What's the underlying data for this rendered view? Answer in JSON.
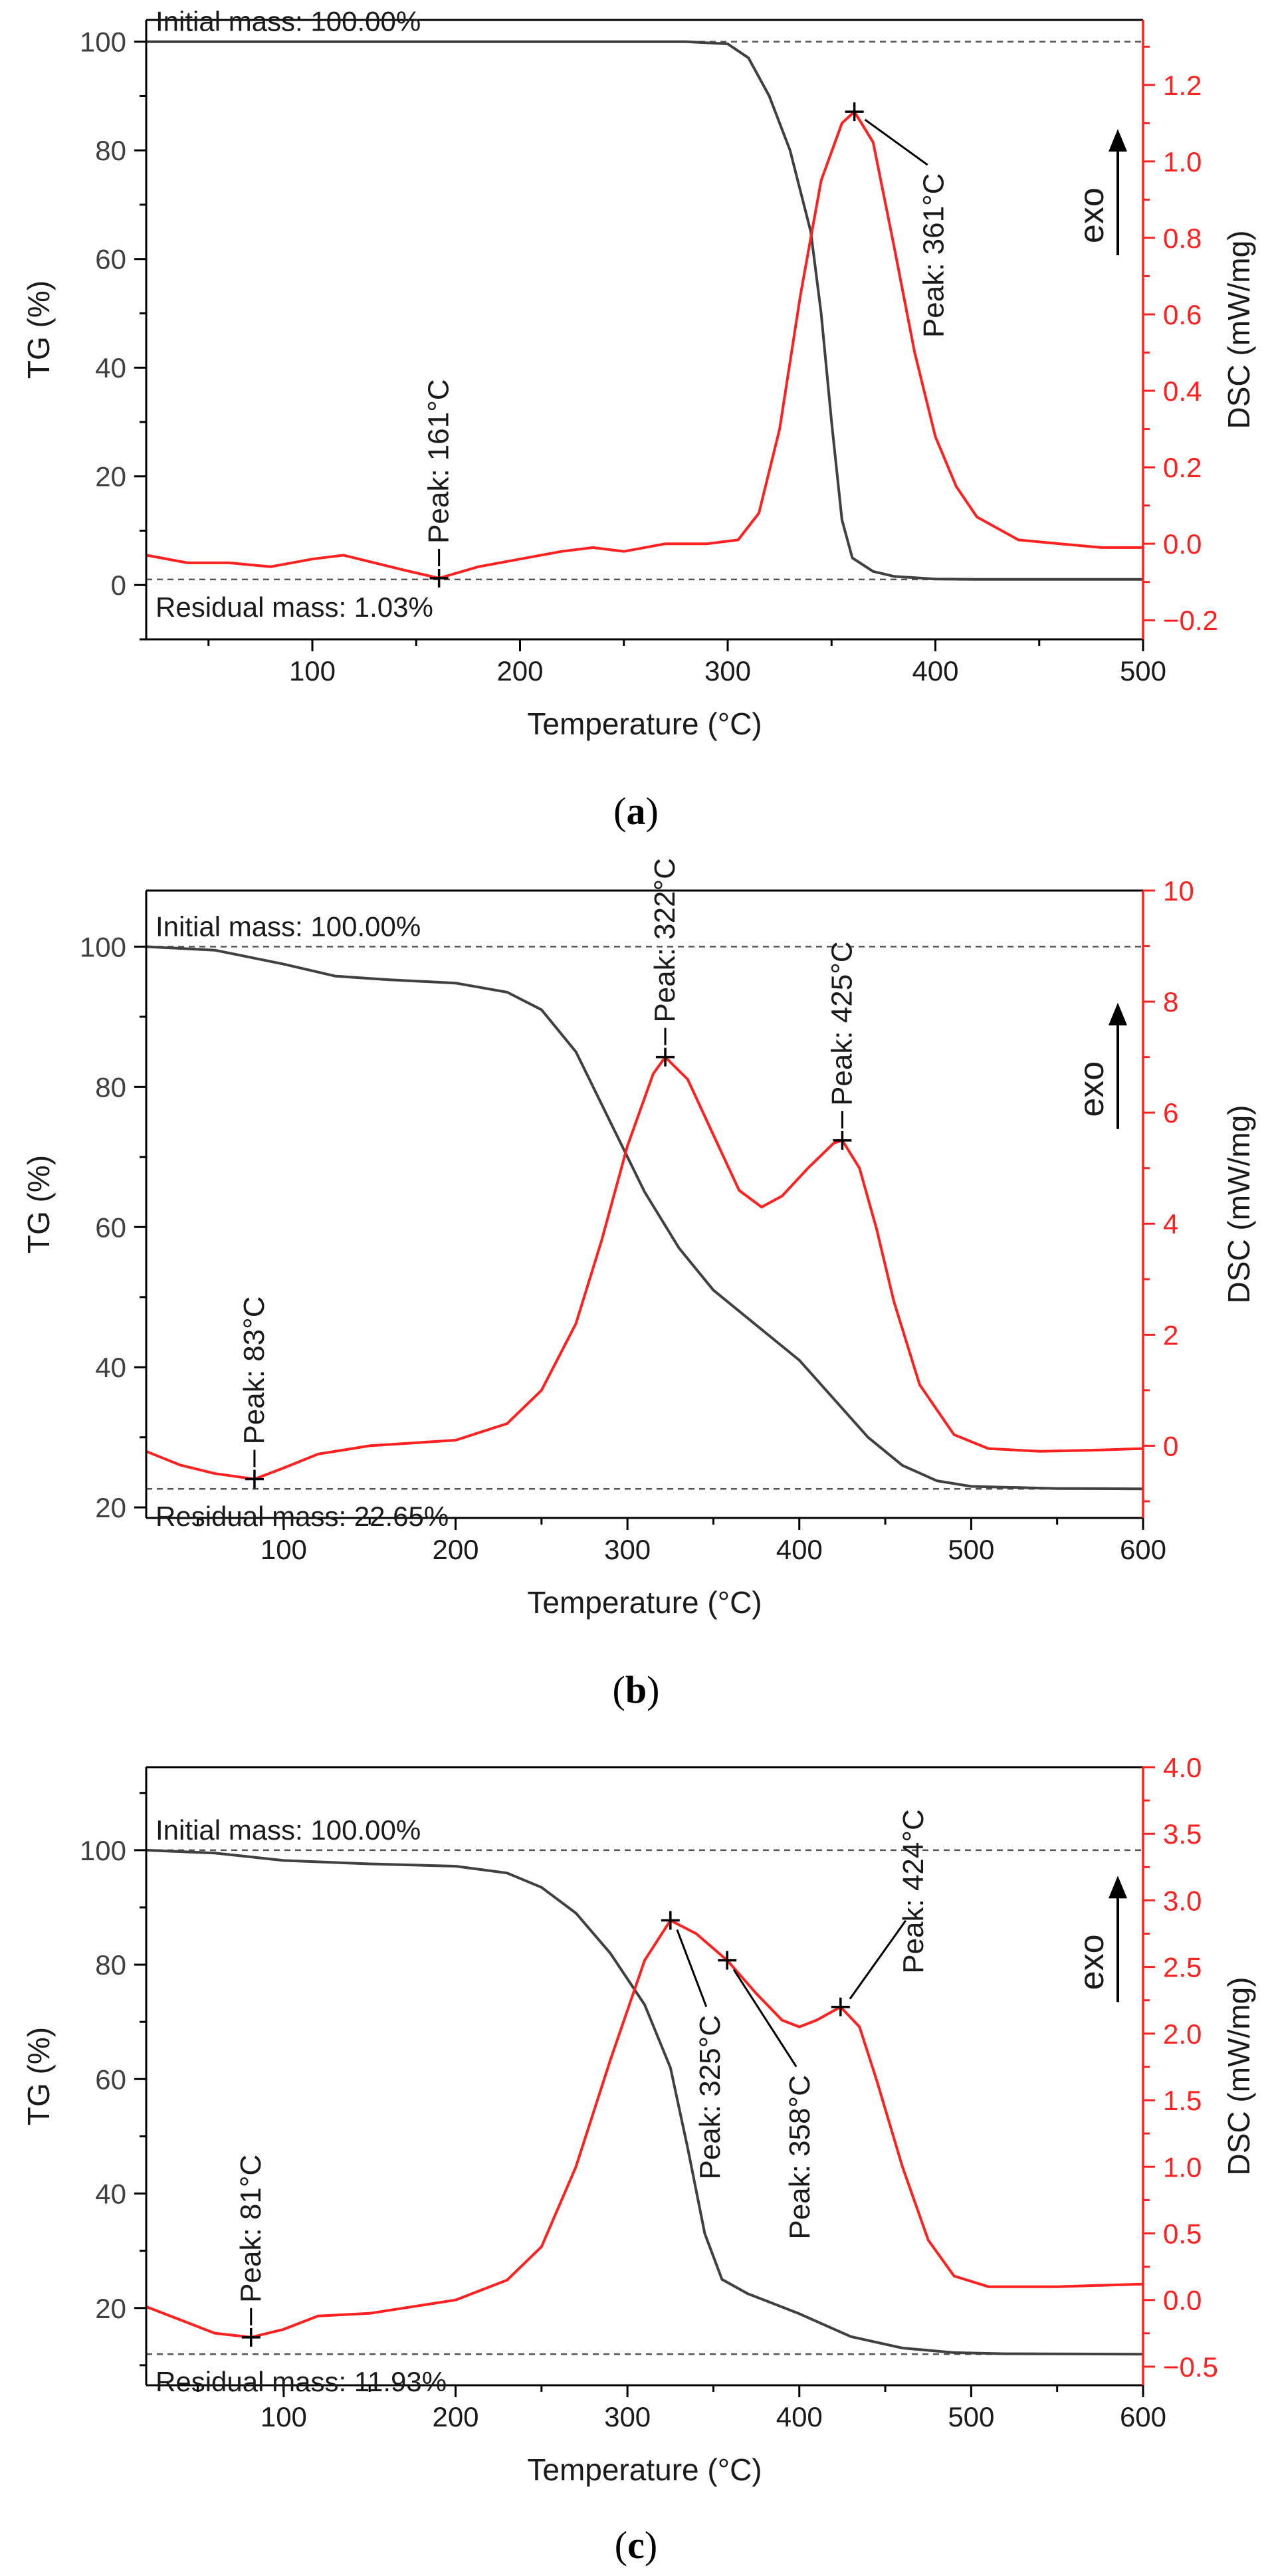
{
  "colors": {
    "tg": "#404040",
    "dsc": "#ff2020",
    "axis": "#000000",
    "dsc_axis": "#ff2020",
    "ref": "#555555"
  },
  "chart_data": [
    {
      "panel": "a",
      "type": "line",
      "caption_letter": "a",
      "xlabel": "Temperature (°C)",
      "ylabel_left": "TG (%)",
      "ylabel_right": "DSC (mW/mg)",
      "xlim": [
        20,
        500
      ],
      "xticks": [
        100,
        200,
        300,
        400,
        500
      ],
      "ylim_left": [
        -10,
        104
      ],
      "yticks_left": [
        0,
        20,
        40,
        60,
        80,
        100
      ],
      "ylim_right": [
        -0.25,
        1.37
      ],
      "yticks_right": [
        "-0.2",
        "0.0",
        "0.2",
        "0.4",
        "0.6",
        "0.8",
        "1.0",
        "1.2"
      ],
      "annotations": {
        "initial": "Initial mass: 100.00%",
        "residual": "Residual mass: 1.03%",
        "initial_value": 100.0,
        "residual_value": 1.03
      },
      "exo_label": "exo",
      "series": [
        {
          "name": "TG",
          "axis": "left",
          "x": [
            20,
            100,
            200,
            280,
            300,
            310,
            320,
            330,
            340,
            345,
            350,
            355,
            360,
            370,
            380,
            400,
            420,
            450,
            500
          ],
          "y": [
            100,
            100,
            100,
            100,
            99.6,
            97,
            90,
            80,
            65,
            50,
            30,
            12,
            5,
            2.5,
            1.6,
            1.1,
            1.05,
            1.03,
            1.03
          ]
        },
        {
          "name": "DSC",
          "axis": "right",
          "x": [
            20,
            40,
            60,
            80,
            100,
            115,
            130,
            145,
            161,
            180,
            200,
            220,
            235,
            250,
            270,
            290,
            305,
            315,
            325,
            335,
            345,
            355,
            361,
            370,
            380,
            390,
            400,
            410,
            420,
            440,
            460,
            480,
            500
          ],
          "y": [
            -0.03,
            -0.05,
            -0.05,
            -0.06,
            -0.04,
            -0.03,
            -0.05,
            -0.07,
            -0.09,
            -0.06,
            -0.04,
            -0.02,
            -0.01,
            -0.02,
            0.0,
            0.0,
            0.01,
            0.08,
            0.3,
            0.65,
            0.95,
            1.1,
            1.13,
            1.05,
            0.78,
            0.5,
            0.28,
            0.15,
            0.07,
            0.01,
            0.0,
            -0.01,
            -0.01
          ]
        }
      ],
      "peaks": [
        {
          "x": 161,
          "y": -0.09,
          "label": "Peak: 161°C"
        },
        {
          "x": 361,
          "y": 1.13,
          "label": "Peak: 361°C"
        }
      ]
    },
    {
      "panel": "b",
      "type": "line",
      "caption_letter": "b",
      "xlabel": "Temperature (°C)",
      "ylabel_left": "TG (%)",
      "ylabel_right": "DSC (mW/mg)",
      "xlim": [
        20,
        600
      ],
      "xticks": [
        100,
        200,
        300,
        400,
        500,
        600
      ],
      "ylim_left": [
        18.5,
        108
      ],
      "yticks_left": [
        20,
        40,
        60,
        80,
        100
      ],
      "ylim_right": [
        -1.3,
        10
      ],
      "yticks_right": [
        "0",
        "2",
        "4",
        "6",
        "8",
        "10"
      ],
      "annotations": {
        "initial": "Initial mass: 100.00%",
        "residual": "Residual mass: 22.65%",
        "initial_value": 100.0,
        "residual_value": 22.65
      },
      "exo_label": "exo",
      "series": [
        {
          "name": "TG",
          "axis": "left",
          "x": [
            20,
            60,
            100,
            130,
            160,
            200,
            230,
            250,
            270,
            290,
            310,
            330,
            350,
            380,
            400,
            420,
            440,
            460,
            480,
            500,
            550,
            600
          ],
          "y": [
            100,
            99.5,
            97.5,
            95.8,
            95.3,
            94.8,
            93.5,
            91,
            85,
            75,
            65,
            57,
            51,
            45,
            41,
            35.5,
            30,
            26,
            23.8,
            23,
            22.7,
            22.65
          ]
        },
        {
          "name": "DSC",
          "axis": "right",
          "x": [
            20,
            40,
            60,
            83,
            100,
            120,
            150,
            200,
            230,
            250,
            270,
            285,
            300,
            315,
            322,
            335,
            350,
            365,
            378,
            390,
            405,
            420,
            425,
            435,
            445,
            455,
            470,
            490,
            510,
            540,
            570,
            600
          ],
          "y": [
            -0.1,
            -0.35,
            -0.5,
            -0.6,
            -0.4,
            -0.15,
            0.0,
            0.1,
            0.4,
            1.0,
            2.2,
            3.7,
            5.4,
            6.7,
            7.0,
            6.6,
            5.6,
            4.6,
            4.3,
            4.5,
            5.0,
            5.45,
            5.5,
            5.0,
            3.9,
            2.6,
            1.1,
            0.2,
            -0.05,
            -0.1,
            -0.08,
            -0.05
          ]
        }
      ],
      "peaks": [
        {
          "x": 83,
          "y": -0.6,
          "label": "Peak: 83°C"
        },
        {
          "x": 322,
          "y": 7.0,
          "label": "Peak: 322°C"
        },
        {
          "x": 425,
          "y": 5.5,
          "label": "Peak: 425°C"
        }
      ]
    },
    {
      "panel": "c",
      "type": "line",
      "caption_letter": "c",
      "xlabel": "Temperature (°C)",
      "ylabel_left": "TG (%)",
      "ylabel_right": "DSC (mW/mg)",
      "xlim": [
        20,
        600
      ],
      "xticks": [
        100,
        200,
        300,
        400,
        500,
        600
      ],
      "ylim_left": [
        6.5,
        114.5
      ],
      "yticks_left": [
        20,
        40,
        60,
        80,
        100
      ],
      "ylim_right": [
        -0.64,
        4.0
      ],
      "yticks_right": [
        "-0.5",
        "0.0",
        "0.5",
        "1.0",
        "1.5",
        "2.0",
        "2.5",
        "3.0",
        "3.5",
        "4.0"
      ],
      "annotations": {
        "initial": "Initial mass: 100.00%",
        "residual": "Residual mass: 11.93%",
        "initial_value": 100.0,
        "residual_value": 11.93
      },
      "exo_label": "exo",
      "series": [
        {
          "name": "TG",
          "axis": "left",
          "x": [
            20,
            60,
            100,
            150,
            200,
            230,
            250,
            270,
            290,
            310,
            325,
            335,
            345,
            355,
            370,
            400,
            430,
            460,
            490,
            520,
            600
          ],
          "y": [
            100,
            99.5,
            98.2,
            97.6,
            97.2,
            96,
            93.5,
            89,
            82,
            73,
            62,
            48,
            33,
            25,
            22.5,
            19,
            15,
            13,
            12.2,
            12,
            11.93
          ]
        },
        {
          "name": "DSC",
          "axis": "right",
          "x": [
            20,
            40,
            60,
            81,
            100,
            120,
            150,
            200,
            230,
            250,
            270,
            290,
            310,
            325,
            340,
            358,
            375,
            390,
            400,
            410,
            424,
            435,
            445,
            460,
            475,
            490,
            510,
            550,
            600
          ],
          "y": [
            -0.05,
            -0.15,
            -0.25,
            -0.28,
            -0.22,
            -0.12,
            -0.1,
            0.0,
            0.15,
            0.4,
            1.0,
            1.8,
            2.55,
            2.85,
            2.75,
            2.55,
            2.3,
            2.1,
            2.05,
            2.1,
            2.2,
            2.05,
            1.65,
            1.0,
            0.45,
            0.18,
            0.1,
            0.1,
            0.12
          ]
        }
      ],
      "peaks": [
        {
          "x": 81,
          "y": -0.28,
          "label": "Peak: 81°C"
        },
        {
          "x": 325,
          "y": 2.85,
          "label": "Peak: 325°C"
        },
        {
          "x": 358,
          "y": 2.55,
          "label": "Peak: 358°C"
        },
        {
          "x": 424,
          "y": 2.2,
          "label": "Peak: 424°C"
        }
      ]
    }
  ]
}
